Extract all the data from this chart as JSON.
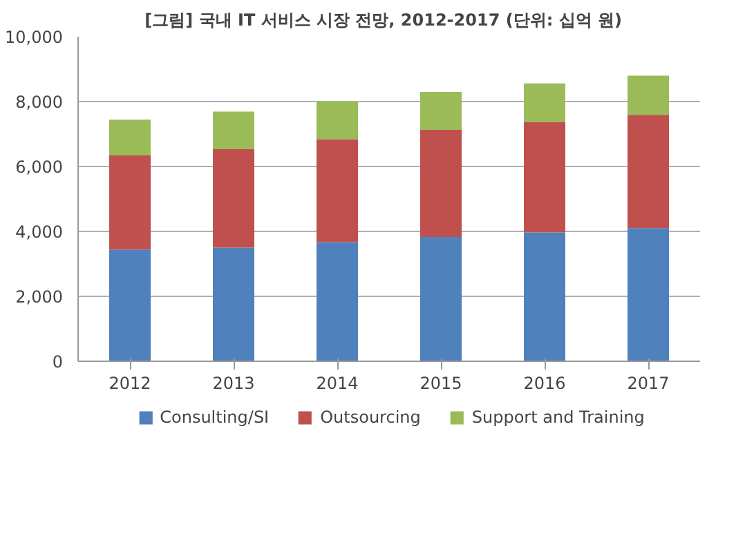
{
  "chart_data": {
    "type": "bar",
    "stacked": true,
    "title": "[그림]  국내 IT 서비스 시장 전망, 2012-2017  (단위: 십억 원)",
    "categories": [
      "2012",
      "2013",
      "2014",
      "2015",
      "2016",
      "2017"
    ],
    "series": [
      {
        "name": "Consulting/SI",
        "color": "#4f81bd",
        "values": [
          3440,
          3500,
          3670,
          3830,
          3970,
          4100
        ]
      },
      {
        "name": "Outsourcing",
        "color": "#c0504d",
        "values": [
          2900,
          3030,
          3170,
          3300,
          3390,
          3490
        ]
      },
      {
        "name": "Support and Training",
        "color": "#9bbb59",
        "values": [
          1100,
          1160,
          1170,
          1170,
          1200,
          1210
        ]
      }
    ],
    "ylim": [
      0,
      10000
    ],
    "yticks": [
      {
        "value": 0,
        "label": "0"
      },
      {
        "value": 2000,
        "label": "2,000"
      },
      {
        "value": 4000,
        "label": "4,000"
      },
      {
        "value": 6000,
        "label": "6,000"
      },
      {
        "value": 8000,
        "label": "8,000"
      },
      {
        "value": 10000,
        "label": "10,000"
      }
    ],
    "grid": "y",
    "legend": "bottom"
  }
}
